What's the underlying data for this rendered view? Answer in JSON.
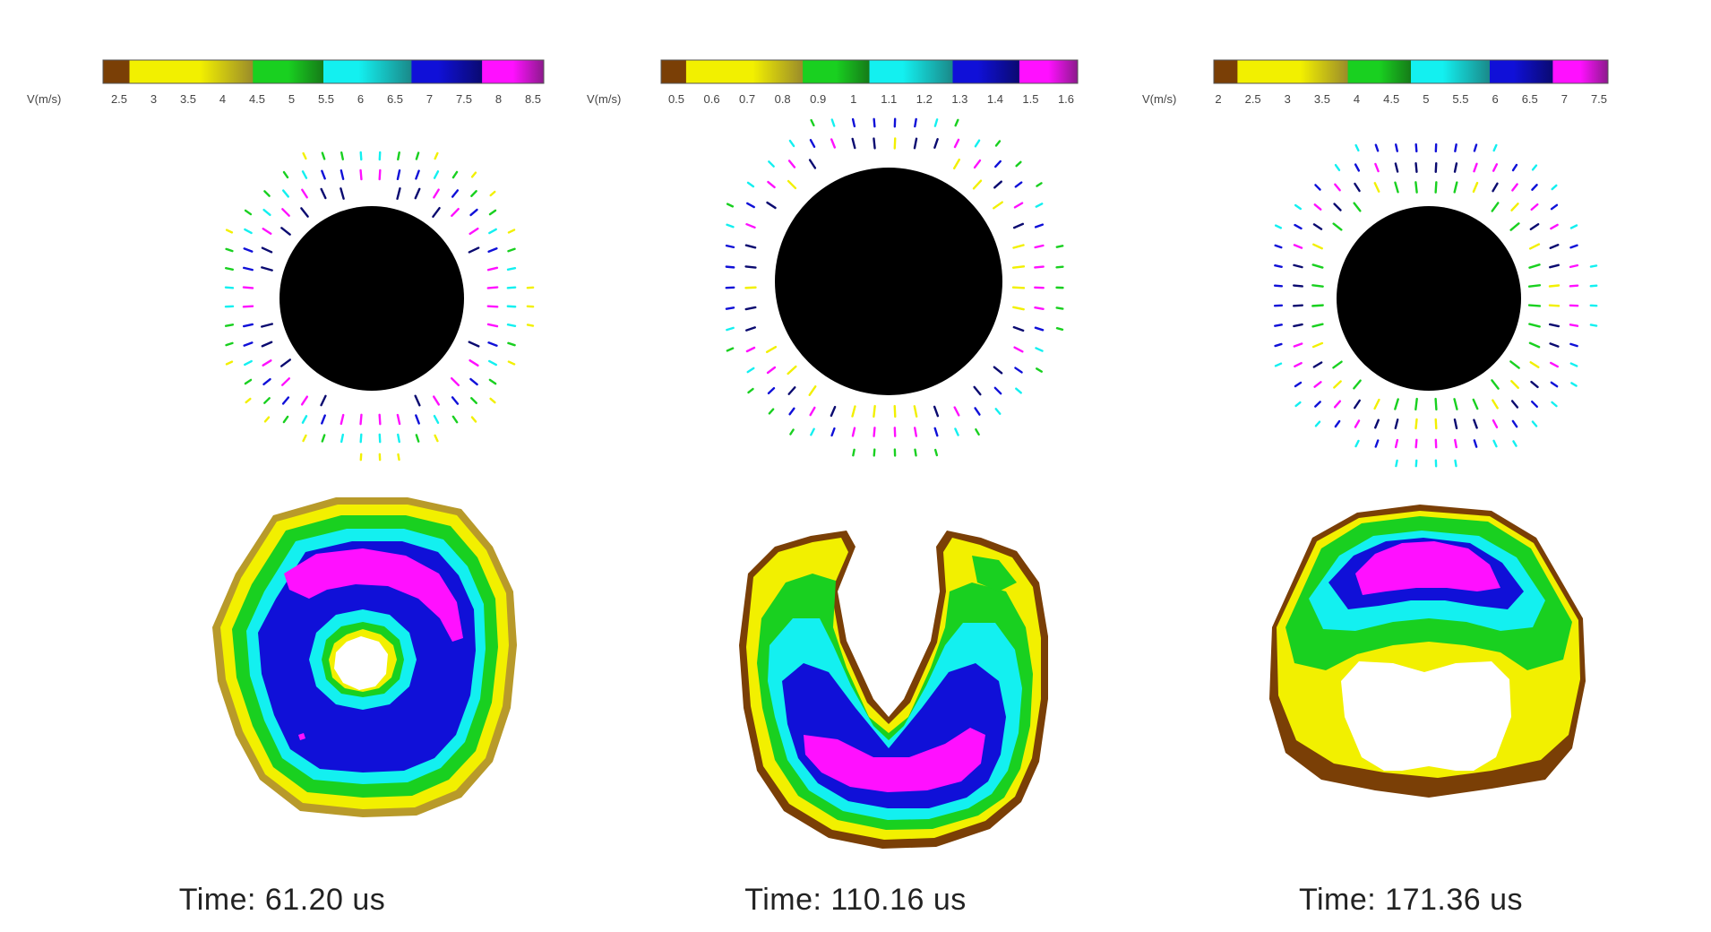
{
  "colors": {
    "brown": "#7a3f06",
    "yellow": "#f2f000",
    "olive": "#9a8b2a",
    "green": "#19d020",
    "darkgreen": "#157a18",
    "cyan": "#13f0f0",
    "teal": "#1a8888",
    "blue": "#1010d8",
    "navy": "#0a0a70",
    "magenta": "#ff10ff",
    "purple": "#8a1a8a",
    "black": "#000000"
  },
  "panels": [
    {
      "colorbar": {
        "unit_label": "V(m/s)",
        "ticks": [
          "2.5",
          "3",
          "3.5",
          "4",
          "4.5",
          "5",
          "5.5",
          "6",
          "6.5",
          "7",
          "7.5",
          "8",
          "8.5"
        ]
      },
      "time_label": "Time: 61.20 us"
    },
    {
      "colorbar": {
        "unit_label": "V(m/s)",
        "ticks": [
          "0.5",
          "0.6",
          "0.7",
          "0.8",
          "0.9",
          "1",
          "1.1",
          "1.2",
          "1.3",
          "1.4",
          "1.5",
          "1.6"
        ]
      },
      "time_label": "Time: 110.16 us"
    },
    {
      "colorbar": {
        "unit_label": "V(m/s)",
        "ticks": [
          "2",
          "2.5",
          "3",
          "3.5",
          "4",
          "4.5",
          "5",
          "5.5",
          "6",
          "6.5",
          "7",
          "7.5"
        ]
      },
      "time_label": "Time: 171.36 us"
    }
  ]
}
